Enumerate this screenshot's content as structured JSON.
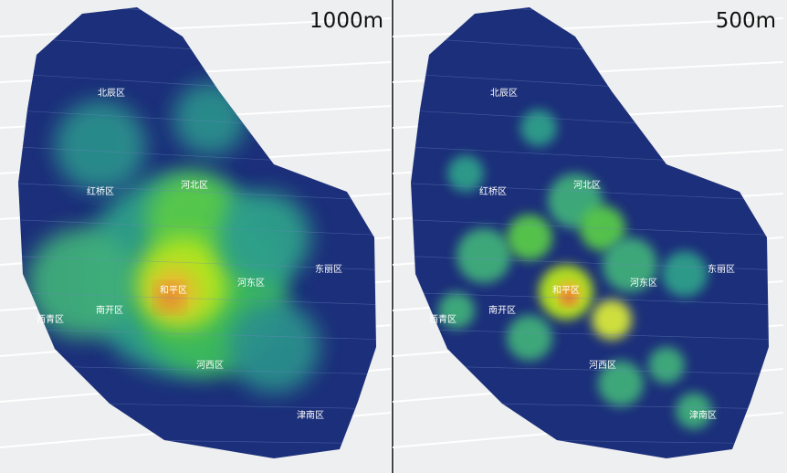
{
  "panels": [
    {
      "title": "1000m",
      "districts": [
        "北辰区",
        "红桥区",
        "河北区",
        "和平区",
        "河东区",
        "东丽区",
        "西青区",
        "南开区",
        "河西区",
        "津南区"
      ]
    },
    {
      "title": "500m",
      "districts": [
        "北辰区",
        "红桥区",
        "河北区",
        "和平区",
        "河东区",
        "东丽区",
        "西青区",
        "南开区",
        "河西区",
        "津南区"
      ]
    }
  ]
}
